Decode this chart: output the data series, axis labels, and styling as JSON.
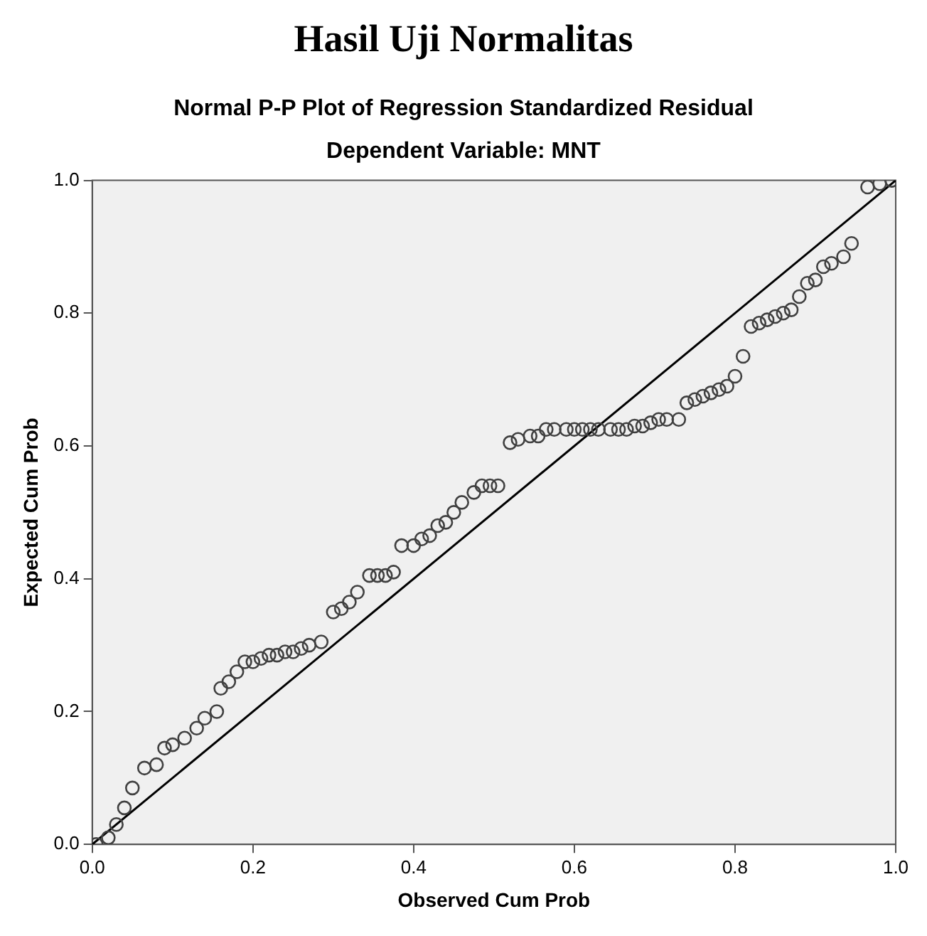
{
  "chart_data": {
    "type": "scatter",
    "title": "Hasil Uji Normalitas",
    "subtitle": "Normal P-P Plot of Regression Standardized Residual",
    "annotations": [
      "Dependent Variable: MNT"
    ],
    "xlabel": "Observed Cum Prob",
    "ylabel": "Expected Cum Prob",
    "xlim": [
      0,
      1
    ],
    "ylim": [
      0,
      1
    ],
    "xticks": [
      {
        "value": 0,
        "label": "0.0"
      },
      {
        "value": 0.2,
        "label": "0.2"
      },
      {
        "value": 0.4,
        "label": "0.4"
      },
      {
        "value": 0.6,
        "label": "0.6"
      },
      {
        "value": 0.8,
        "label": "0.8"
      },
      {
        "value": 1,
        "label": "1.0"
      }
    ],
    "yticks": [
      {
        "value": 0,
        "label": "0.0"
      },
      {
        "value": 0.2,
        "label": "0.2"
      },
      {
        "value": 0.4,
        "label": "0.4"
      },
      {
        "value": 0.6,
        "label": "0.6"
      },
      {
        "value": 0.8,
        "label": "0.8"
      },
      {
        "value": 1,
        "label": "1.0"
      }
    ],
    "grid": false,
    "legend": false,
    "marker": "circle",
    "series": [
      {
        "color": "#404040",
        "x": [
          0.005,
          0.02,
          0.03,
          0.04,
          0.05,
          0.065,
          0.08,
          0.09,
          0.1,
          0.115,
          0.13,
          0.14,
          0.155,
          0.16,
          0.17,
          0.18,
          0.19,
          0.2,
          0.21,
          0.22,
          0.23,
          0.24,
          0.25,
          0.26,
          0.27,
          0.285,
          0.3,
          0.31,
          0.32,
          0.33,
          0.345,
          0.355,
          0.365,
          0.375,
          0.385,
          0.4,
          0.41,
          0.42,
          0.43,
          0.44,
          0.45,
          0.46,
          0.475,
          0.485,
          0.495,
          0.505,
          0.52,
          0.53,
          0.545,
          0.555,
          0.565,
          0.575,
          0.59,
          0.6,
          0.61,
          0.62,
          0.63,
          0.645,
          0.655,
          0.665,
          0.675,
          0.685,
          0.695,
          0.705,
          0.715,
          0.73,
          0.74,
          0.75,
          0.76,
          0.77,
          0.78,
          0.79,
          0.8,
          0.81,
          0.82,
          0.83,
          0.84,
          0.85,
          0.86,
          0.87,
          0.88,
          0.89,
          0.9,
          0.91,
          0.92,
          0.935,
          0.945,
          0.965,
          0.98,
          0.995
        ],
        "values": [
          0,
          0.01,
          0.03,
          0.055,
          0.085,
          0.115,
          0.12,
          0.145,
          0.15,
          0.16,
          0.175,
          0.19,
          0.2,
          0.235,
          0.245,
          0.26,
          0.275,
          0.275,
          0.28,
          0.285,
          0.285,
          0.29,
          0.29,
          0.295,
          0.3,
          0.305,
          0.35,
          0.355,
          0.365,
          0.38,
          0.405,
          0.405,
          0.405,
          0.41,
          0.45,
          0.45,
          0.46,
          0.465,
          0.48,
          0.485,
          0.5,
          0.515,
          0.53,
          0.54,
          0.54,
          0.54,
          0.605,
          0.61,
          0.615,
          0.615,
          0.625,
          0.625,
          0.625,
          0.625,
          0.625,
          0.625,
          0.625,
          0.625,
          0.625,
          0.625,
          0.63,
          0.63,
          0.635,
          0.64,
          0.64,
          0.64,
          0.665,
          0.67,
          0.675,
          0.68,
          0.685,
          0.69,
          0.705,
          0.735,
          0.78,
          0.785,
          0.79,
          0.795,
          0.8,
          0.805,
          0.825,
          0.845,
          0.85,
          0.87,
          0.875,
          0.885,
          0.905,
          0.99,
          0.995,
          1
        ]
      },
      {
        "type": "line",
        "color": "#000000",
        "marker": "none",
        "x": [
          0,
          1
        ],
        "values": [
          0,
          1
        ]
      }
    ]
  }
}
